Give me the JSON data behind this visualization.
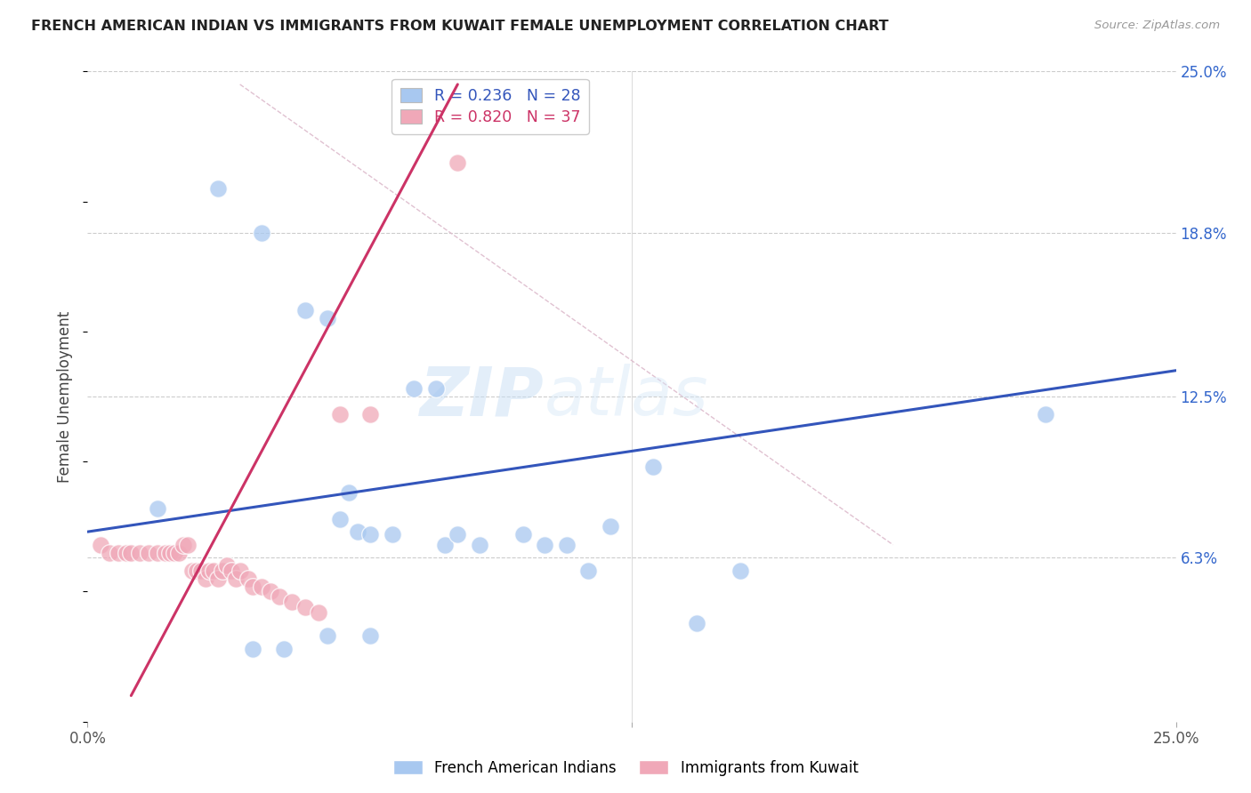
{
  "title": "FRENCH AMERICAN INDIAN VS IMMIGRANTS FROM KUWAIT FEMALE UNEMPLOYMENT CORRELATION CHART",
  "source": "Source: ZipAtlas.com",
  "ylabel": "Female Unemployment",
  "xlim": [
    0.0,
    0.25
  ],
  "ylim": [
    0.0,
    0.25
  ],
  "ytick_labels": [
    "6.3%",
    "12.5%",
    "18.8%",
    "25.0%"
  ],
  "ytick_positions": [
    0.063,
    0.125,
    0.188,
    0.25
  ],
  "watermark": "ZIPatlas",
  "blue_color": "#a8c8f0",
  "pink_color": "#f0a8b8",
  "blue_line_color": "#3355bb",
  "pink_line_color": "#cc3366",
  "legend_label_blue": "French American Indians",
  "legend_label_pink": "Immigrants from Kuwait",
  "blue_scatter_x": [
    0.016,
    0.03,
    0.04,
    0.05,
    0.055,
    0.058,
    0.062,
    0.065,
    0.07,
    0.075,
    0.08,
    0.082,
    0.085,
    0.09,
    0.1,
    0.105,
    0.11,
    0.115,
    0.12,
    0.13,
    0.14,
    0.22,
    0.038,
    0.045,
    0.055,
    0.06,
    0.065,
    0.15
  ],
  "blue_scatter_y": [
    0.082,
    0.205,
    0.188,
    0.158,
    0.155,
    0.078,
    0.073,
    0.072,
    0.072,
    0.128,
    0.128,
    0.068,
    0.072,
    0.068,
    0.072,
    0.068,
    0.068,
    0.058,
    0.075,
    0.098,
    0.038,
    0.118,
    0.028,
    0.028,
    0.033,
    0.088,
    0.033,
    0.058
  ],
  "pink_scatter_x": [
    0.003,
    0.005,
    0.007,
    0.009,
    0.01,
    0.012,
    0.014,
    0.016,
    0.018,
    0.019,
    0.02,
    0.021,
    0.022,
    0.023,
    0.024,
    0.025,
    0.026,
    0.027,
    0.028,
    0.029,
    0.03,
    0.031,
    0.032,
    0.033,
    0.034,
    0.035,
    0.037,
    0.038,
    0.04,
    0.042,
    0.044,
    0.047,
    0.05,
    0.053,
    0.058,
    0.065,
    0.085
  ],
  "pink_scatter_y": [
    0.068,
    0.065,
    0.065,
    0.065,
    0.065,
    0.065,
    0.065,
    0.065,
    0.065,
    0.065,
    0.065,
    0.065,
    0.068,
    0.068,
    0.058,
    0.058,
    0.058,
    0.055,
    0.058,
    0.058,
    0.055,
    0.058,
    0.06,
    0.058,
    0.055,
    0.058,
    0.055,
    0.052,
    0.052,
    0.05,
    0.048,
    0.046,
    0.044,
    0.042,
    0.118,
    0.118,
    0.215
  ],
  "blue_line_x": [
    0.0,
    0.25
  ],
  "blue_line_y": [
    0.073,
    0.135
  ],
  "pink_line_x": [
    0.01,
    0.085
  ],
  "pink_line_y": [
    0.01,
    0.245
  ],
  "dashed_line_x": [
    0.035,
    0.185
  ],
  "dashed_line_y": [
    0.245,
    0.068
  ],
  "dashed_color": "#ddbbcc"
}
